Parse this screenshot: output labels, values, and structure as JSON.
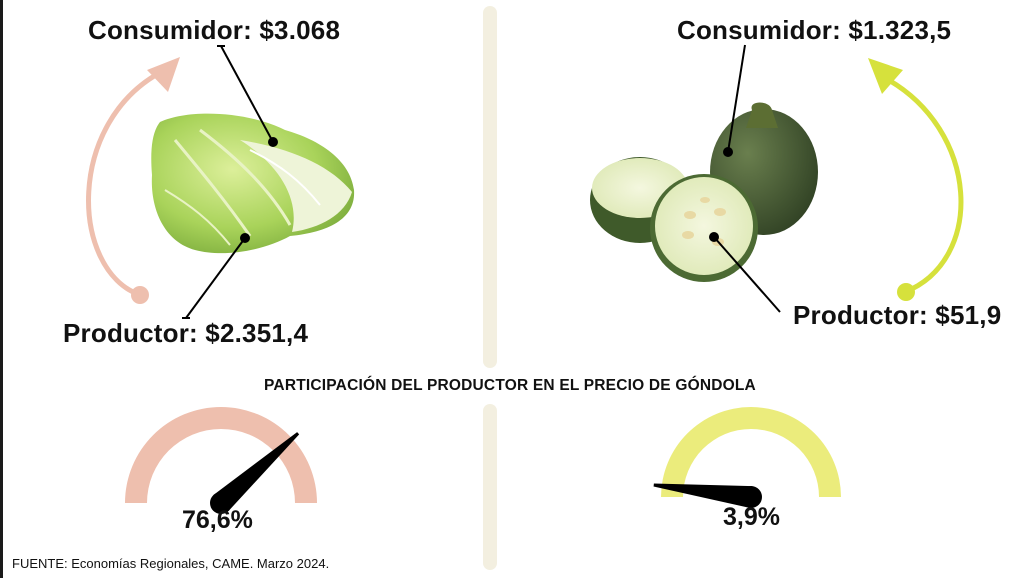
{
  "colors": {
    "lettuce_accent": "#eebfae",
    "zucchini_accent": "#d6e13c",
    "gauge_left": "#eebfae",
    "gauge_right": "#ebec7c",
    "divider": "#f3efe0"
  },
  "left": {
    "product_icon": "lettuce-image",
    "consumer_label": "Consumidor: $3.068",
    "producer_label": "Productor: $2.351,4"
  },
  "right": {
    "product_icon": "zucchini-image",
    "consumer_label": "Consumidor: $1.323,5",
    "producer_label": "Productor: $51,9"
  },
  "section_title": "PARTICIPACIÓN DEL PRODUCTOR EN EL PRECIO DE GÓNDOLA",
  "source": "FUENTE: Economías Regionales, CAME. Marzo 2024.",
  "chart_data": [
    {
      "type": "gauge",
      "series": [
        {
          "name": "",
          "values": [
            76.6
          ]
        }
      ],
      "value": 76.6,
      "range": [
        0,
        100
      ],
      "label": "76,6%"
    },
    {
      "type": "gauge",
      "series": [
        {
          "name": "",
          "values": [
            3.9
          ]
        }
      ],
      "value": 3.9,
      "range": [
        0,
        100
      ],
      "label": "3,9%"
    }
  ]
}
